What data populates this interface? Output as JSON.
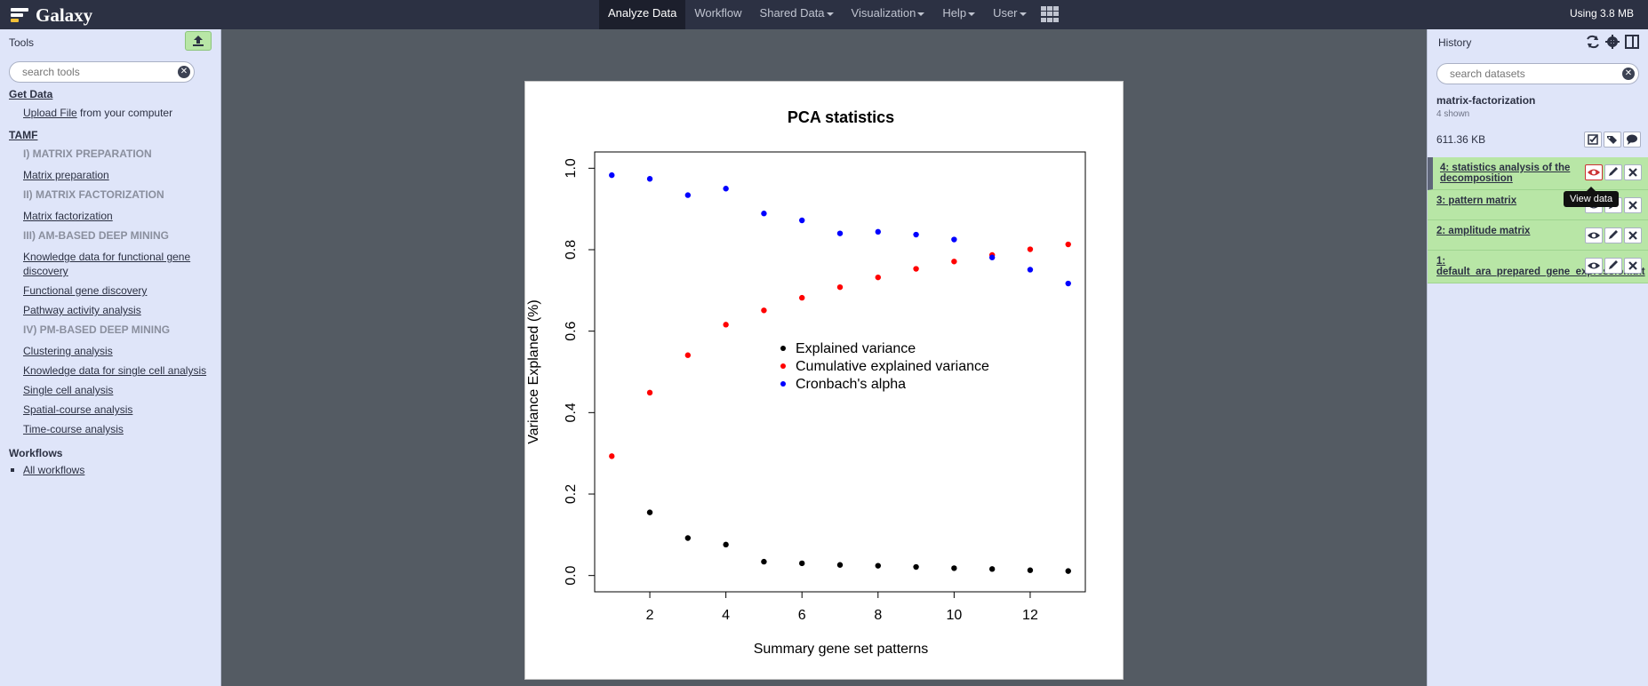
{
  "masthead": {
    "brand": "Galaxy",
    "nav": [
      {
        "label": "Analyze Data",
        "dropdown": false,
        "active": true
      },
      {
        "label": "Workflow",
        "dropdown": false,
        "active": false
      },
      {
        "label": "Shared Data",
        "dropdown": true,
        "active": false
      },
      {
        "label": "Visualization",
        "dropdown": true,
        "active": false
      },
      {
        "label": "Help",
        "dropdown": true,
        "active": false
      },
      {
        "label": "User",
        "dropdown": true,
        "active": false
      }
    ],
    "quota": "Using 3.8 MB"
  },
  "tools": {
    "title": "Tools",
    "search_placeholder": "search tools",
    "get_data": "Get Data",
    "upload_link": "Upload File",
    "upload_suffix": " from your computer",
    "section": "TAMF",
    "items": [
      {
        "type": "label",
        "text": "I) MATRIX PREPARATION"
      },
      {
        "type": "tool",
        "text": "Matrix preparation"
      },
      {
        "type": "label",
        "text": "II) MATRIX FACTORIZATION"
      },
      {
        "type": "tool",
        "text": "Matrix factorization"
      },
      {
        "type": "label",
        "text": "III) AM-BASED DEEP MINING"
      },
      {
        "type": "tool",
        "text": "Knowledge data for functional gene discovery"
      },
      {
        "type": "tool",
        "text": "Functional gene discovery"
      },
      {
        "type": "tool",
        "text": "Pathway activity analysis"
      },
      {
        "type": "label",
        "text": "IV) PM-BASED DEEP MINING"
      },
      {
        "type": "tool",
        "text": "Clustering analysis"
      },
      {
        "type": "tool",
        "text": "Knowledge data for single cell analysis"
      },
      {
        "type": "tool",
        "text": "Single cell analysis"
      },
      {
        "type": "tool",
        "text": "Spatial-course analysis"
      },
      {
        "type": "tool",
        "text": "Time-course analysis"
      }
    ],
    "workflows_title": "Workflows",
    "all_workflows": "All workflows"
  },
  "history": {
    "title": "History",
    "search_placeholder": "search datasets",
    "name": "matrix-factorization",
    "shown": "4 shown",
    "size": "611.36 KB",
    "datasets": [
      {
        "label": "4: statistics analysis of the decomposition"
      },
      {
        "label": "3: pattern matrix"
      },
      {
        "label": "2: amplitude matrix"
      },
      {
        "label": "1: default_ara_prepared_gene_expression.txt"
      }
    ],
    "tooltip": "View data"
  },
  "chart_data": {
    "type": "scatter",
    "title": "PCA statistics",
    "xlabel": "Summary gene set patterns",
    "ylabel": "Variance Explaned (%)",
    "xlim": [
      0.55,
      13.45
    ],
    "ylim": [
      -0.04,
      1.04
    ],
    "x_ticks": [
      2,
      4,
      6,
      8,
      10,
      12
    ],
    "y_ticks": [
      0.0,
      0.2,
      0.4,
      0.6,
      0.8,
      1.0
    ],
    "x": [
      1,
      2,
      3,
      4,
      5,
      6,
      7,
      8,
      9,
      10,
      11,
      12,
      13
    ],
    "series": [
      {
        "name": "Explained variance",
        "color": "#000000",
        "values": [
          null,
          0.155,
          0.092,
          0.076,
          0.034,
          0.03,
          0.026,
          0.024,
          0.021,
          0.018,
          0.016,
          0.013,
          0.011
        ]
      },
      {
        "name": "Cumulative explained variance",
        "color": "#ff0000",
        "values": [
          0.293,
          0.449,
          0.541,
          0.616,
          0.651,
          0.682,
          0.708,
          0.732,
          0.753,
          0.771,
          0.787,
          0.801,
          0.813
        ]
      },
      {
        "name": "Cronbach's alpha",
        "color": "#0000ff",
        "values": [
          0.983,
          0.974,
          0.934,
          0.95,
          0.889,
          0.872,
          0.84,
          0.844,
          0.837,
          0.825,
          0.781,
          0.751,
          0.717
        ]
      }
    ],
    "legend_position": "center",
    "grid": false
  }
}
